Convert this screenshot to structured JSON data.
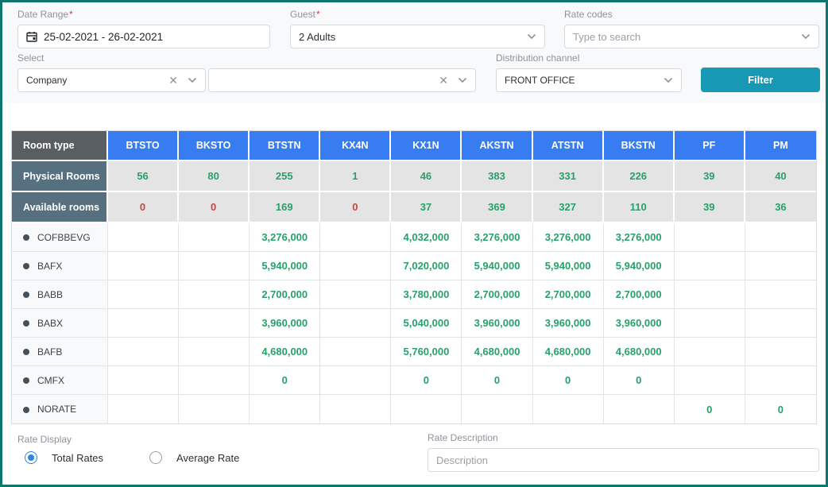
{
  "theme": {
    "page_border": "#0E756F",
    "accent_teal": "#1799B5",
    "header_blue": "#377CF1",
    "room_type_gray": "#595E62",
    "slate_label": "#57707F",
    "green": "#28A06B",
    "red": "#C04A3F"
  },
  "filters": {
    "required_mark": "*",
    "date_range": {
      "label": "Date Range",
      "value": "25-02-2021 - 26-02-2021"
    },
    "guest": {
      "label": "Guest",
      "value": "2 Adults"
    },
    "rate_codes": {
      "label": "Rate codes",
      "placeholder": "Type to search"
    },
    "select": {
      "label": "Select",
      "value": "Company"
    },
    "secondary_select": {
      "value": ""
    },
    "distribution_channel": {
      "label": "Distribution channel",
      "value": "FRONT OFFICE"
    },
    "filter_button": "Filter"
  },
  "table": {
    "room_type_header": "Room type",
    "columns": [
      "BTSTO",
      "BKSTO",
      "BTSTN",
      "KX4N",
      "KX1N",
      "AKSTN",
      "ATSTN",
      "BKSTN",
      "PF",
      "PM"
    ],
    "physical_rooms": {
      "label": "Physical Rooms",
      "values": [
        "56",
        "80",
        "255",
        "1",
        "46",
        "383",
        "331",
        "226",
        "39",
        "40"
      ]
    },
    "available_rooms": {
      "label": "Available rooms",
      "values": [
        "0",
        "0",
        "169",
        "0",
        "37",
        "369",
        "327",
        "110",
        "39",
        "36"
      ],
      "colors": [
        "red",
        "red",
        "green",
        "red",
        "green",
        "green",
        "green",
        "green",
        "green",
        "green"
      ]
    },
    "rate_rows": [
      {
        "code": "COFBBEVG",
        "values": [
          "",
          "",
          "3,276,000",
          "",
          "4,032,000",
          "3,276,000",
          "3,276,000",
          "3,276,000",
          "",
          ""
        ]
      },
      {
        "code": "BAFX",
        "values": [
          "",
          "",
          "5,940,000",
          "",
          "7,020,000",
          "5,940,000",
          "5,940,000",
          "5,940,000",
          "",
          ""
        ]
      },
      {
        "code": "BABB",
        "values": [
          "",
          "",
          "2,700,000",
          "",
          "3,780,000",
          "2,700,000",
          "2,700,000",
          "2,700,000",
          "",
          ""
        ]
      },
      {
        "code": "BABX",
        "values": [
          "",
          "",
          "3,960,000",
          "",
          "5,040,000",
          "3,960,000",
          "3,960,000",
          "3,960,000",
          "",
          ""
        ]
      },
      {
        "code": "BAFB",
        "values": [
          "",
          "",
          "4,680,000",
          "",
          "5,760,000",
          "4,680,000",
          "4,680,000",
          "4,680,000",
          "",
          ""
        ]
      },
      {
        "code": "CMFX",
        "values": [
          "",
          "",
          "0",
          "",
          "0",
          "0",
          "0",
          "0",
          "",
          ""
        ]
      },
      {
        "code": "NORATE",
        "values": [
          "",
          "",
          "",
          "",
          "",
          "",
          "",
          "",
          "0",
          "0"
        ]
      }
    ]
  },
  "footer": {
    "rate_display_label": "Rate Display",
    "options": [
      {
        "label": "Total Rates",
        "selected": true
      },
      {
        "label": "Average Rate",
        "selected": false
      }
    ],
    "rate_description_label": "Rate Description",
    "description_placeholder": "Description"
  }
}
